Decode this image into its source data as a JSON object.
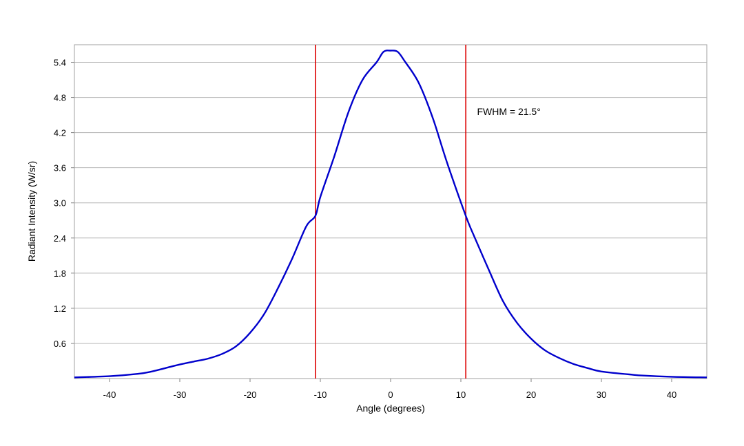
{
  "chart_data": {
    "type": "line",
    "title": "",
    "xlabel": "Angle (degrees)",
    "ylabel": "Radiant Intensity (W/sr)",
    "xlim": [
      -45,
      45
    ],
    "ylim": [
      0,
      5.7
    ],
    "x_ticks": [
      -40,
      -30,
      -20,
      -10,
      0,
      10,
      20,
      30,
      40
    ],
    "x_tick_labels": [
      "-40",
      "-30",
      "-20",
      "-10",
      "0",
      "10",
      "20",
      "30",
      "40"
    ],
    "y_ticks": [
      0.6,
      1.2,
      1.8,
      2.4,
      3.0,
      3.6,
      4.2,
      4.8,
      5.4
    ],
    "y_tick_labels": [
      "0.6",
      "1.2",
      "1.8",
      "2.4",
      "3.0",
      "3.6",
      "4.2",
      "4.8",
      "5.4"
    ],
    "grid": "horizontal",
    "series": [
      {
        "color": "#0000cc",
        "x": [
          -45,
          -40,
          -36,
          -34,
          -32,
          -30,
          -28,
          -26,
          -24,
          -22,
          -20,
          -18,
          -16,
          -14,
          -12,
          -10.7,
          -10,
          -8,
          -6,
          -4,
          -2,
          -1,
          0,
          1,
          2,
          4,
          6,
          8,
          10.7,
          12,
          14,
          16,
          18,
          20,
          22,
          24,
          26,
          28,
          30,
          34,
          36,
          40,
          45
        ],
        "y": [
          0.02,
          0.04,
          0.08,
          0.12,
          0.18,
          0.24,
          0.29,
          0.34,
          0.42,
          0.55,
          0.78,
          1.1,
          1.55,
          2.05,
          2.6,
          2.78,
          3.1,
          3.8,
          4.55,
          5.1,
          5.4,
          5.58,
          5.6,
          5.58,
          5.42,
          5.05,
          4.45,
          3.7,
          2.78,
          2.4,
          1.85,
          1.32,
          0.95,
          0.68,
          0.48,
          0.35,
          0.25,
          0.18,
          0.12,
          0.07,
          0.05,
          0.03,
          0.02
        ]
      }
    ],
    "markers": [
      {
        "x": -10.7,
        "color": "#dd0000"
      },
      {
        "x": 10.7,
        "color": "#dd0000"
      }
    ],
    "annotations": [
      {
        "text": "FWHM = 21.5°",
        "x": 12.3,
        "y": 4.5
      }
    ]
  }
}
